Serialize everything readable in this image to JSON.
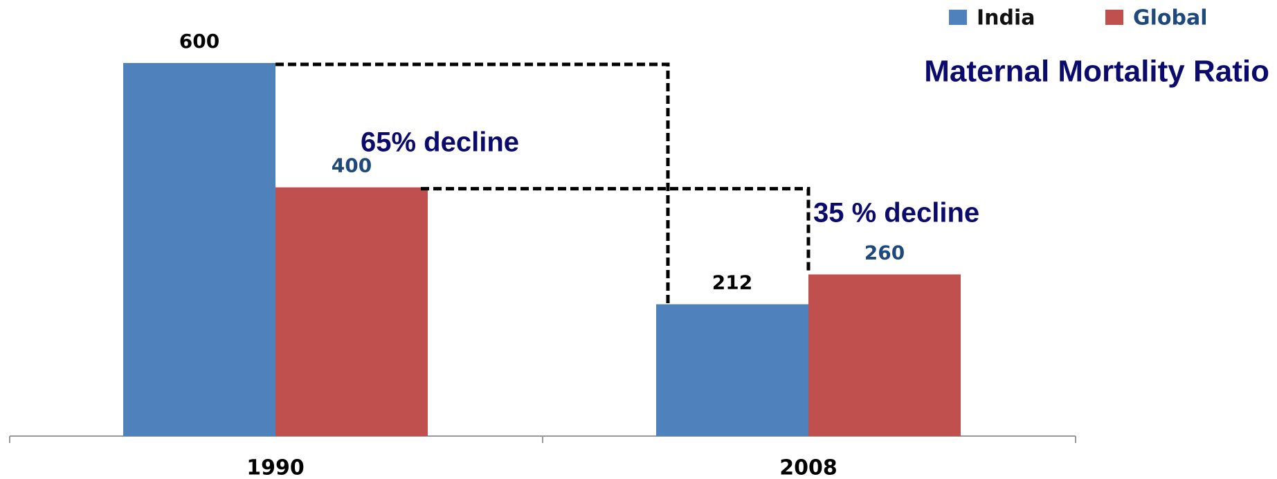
{
  "chart_data": {
    "type": "bar",
    "title": "Maternal Mortality Ratio",
    "categories": [
      "1990",
      "2008"
    ],
    "series": [
      {
        "name": "India",
        "color": "#4f81bd",
        "values": [
          600,
          212
        ]
      },
      {
        "name": "Global",
        "color": "#c0504d",
        "values": [
          400,
          260
        ]
      }
    ],
    "ylim": [
      0,
      600
    ],
    "annotations": [
      "65% decline",
      "35 % decline"
    ],
    "legend": "top-right"
  }
}
